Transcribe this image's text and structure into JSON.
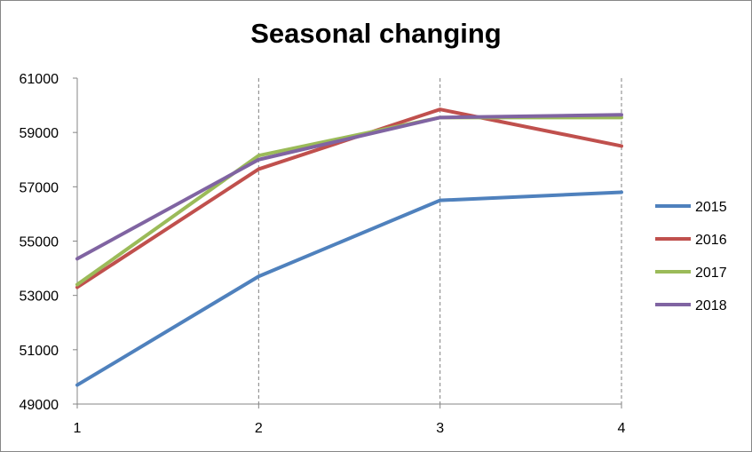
{
  "chart_data": {
    "type": "line",
    "title": "Seasonal changing",
    "xlabel": "",
    "ylabel": "",
    "categories": [
      "1",
      "2",
      "3",
      "4"
    ],
    "ylim": [
      49000,
      61000
    ],
    "yticks": [
      "61000",
      "59000",
      "57000",
      "55000",
      "53000",
      "51000",
      "49000"
    ],
    "grid": "vertical dashed",
    "legend_position": "right",
    "series": [
      {
        "name": "2015",
        "color": "#4F81BD",
        "values": [
          49700,
          53700,
          56500,
          56800
        ]
      },
      {
        "name": "2016",
        "color": "#C0504D",
        "values": [
          53300,
          57650,
          59850,
          58500
        ]
      },
      {
        "name": "2017",
        "color": "#9BBB59",
        "values": [
          53400,
          58150,
          59550,
          59550
        ]
      },
      {
        "name": "2018",
        "color": "#8064A2",
        "values": [
          54350,
          58000,
          59550,
          59650
        ]
      }
    ]
  }
}
